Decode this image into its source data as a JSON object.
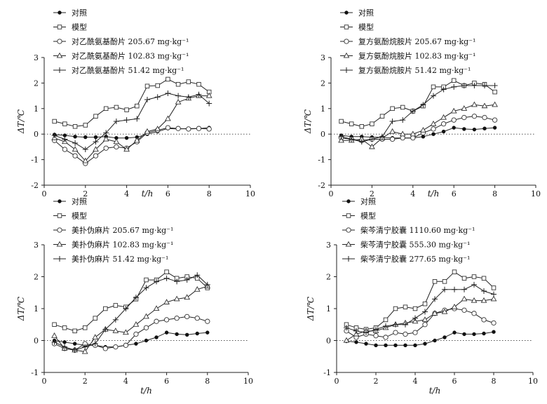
{
  "chart_data": [
    {
      "type": "line",
      "xlabel": "t/h",
      "ylabel": "ΔT/℃",
      "xlim": [
        0,
        10
      ],
      "ylim": [
        -2,
        3
      ],
      "xticks": [
        "0",
        "2",
        "4",
        "6",
        "8",
        "10"
      ],
      "yticks": [
        "-2",
        "-1",
        "0",
        "1",
        "2",
        "3"
      ],
      "grid": false,
      "legend_position": "top-left",
      "baseline_dotted": true,
      "x": [
        0.5,
        1,
        1.5,
        2,
        2.5,
        3,
        3.5,
        4,
        4.5,
        5,
        5.5,
        6,
        6.5,
        7,
        7.5,
        8
      ],
      "series": [
        {
          "name": "对照",
          "marker": "dot",
          "values": [
            -0.02,
            -0.05,
            -0.1,
            -0.12,
            -0.12,
            -0.1,
            -0.15,
            -0.15,
            -0.12,
            0.0,
            0.1,
            0.22,
            0.2,
            0.22,
            0.22,
            0.25
          ]
        },
        {
          "name": "模型",
          "marker": "square",
          "values": [
            0.5,
            0.4,
            0.3,
            0.35,
            0.7,
            1.0,
            1.05,
            0.95,
            1.1,
            1.88,
            1.9,
            2.15,
            1.95,
            2.05,
            1.95,
            1.65
          ]
        },
        {
          "name": "对乙酰氨基酚片 205.67 mg·kg⁻¹",
          "marker": "circle",
          "values": [
            -0.25,
            -0.6,
            -0.85,
            -1.15,
            -0.85,
            -0.55,
            -0.5,
            -0.55,
            -0.3,
            0.05,
            0.15,
            0.25,
            0.22,
            0.2,
            0.22,
            0.2
          ]
        },
        {
          "name": "对乙酰氨基酚片 102.83 mg·kg⁻¹",
          "marker": "triangle",
          "values": [
            -0.15,
            -0.3,
            -0.6,
            -1.05,
            -0.6,
            -0.2,
            -0.3,
            -0.6,
            -0.25,
            0.1,
            0.2,
            0.6,
            1.25,
            1.4,
            1.5,
            1.5
          ]
        },
        {
          "name": "对乙酰氨基酚片  51.42 mg·kg⁻¹",
          "marker": "plus",
          "values": [
            -0.05,
            -0.2,
            -0.35,
            -0.6,
            -0.3,
            0.05,
            0.5,
            0.55,
            0.6,
            1.35,
            1.45,
            1.6,
            1.5,
            1.45,
            1.55,
            1.2
          ]
        }
      ]
    },
    {
      "type": "line",
      "xlabel": "t/h",
      "ylabel": "ΔT/℃",
      "xlim": [
        0,
        10
      ],
      "ylim": [
        -2,
        3
      ],
      "xticks": [
        "0",
        "2",
        "4",
        "6",
        "8",
        "10"
      ],
      "yticks": [
        "-2",
        "-1",
        "0",
        "1",
        "2",
        "3"
      ],
      "grid": false,
      "legend_position": "top-left",
      "baseline_dotted": true,
      "x": [
        0.5,
        1,
        1.5,
        2,
        2.5,
        3,
        3.5,
        4,
        4.5,
        5,
        5.5,
        6,
        6.5,
        7,
        7.5,
        8
      ],
      "series": [
        {
          "name": "对照",
          "marker": "dot",
          "values": [
            -0.05,
            -0.1,
            -0.1,
            -0.12,
            -0.12,
            -0.15,
            -0.15,
            -0.15,
            -0.1,
            0.0,
            0.1,
            0.25,
            0.2,
            0.18,
            0.22,
            0.25
          ]
        },
        {
          "name": "模型",
          "marker": "square",
          "values": [
            0.5,
            0.4,
            0.3,
            0.4,
            0.7,
            1.0,
            1.05,
            0.9,
            1.1,
            1.85,
            1.85,
            2.1,
            1.9,
            2.0,
            1.95,
            1.65
          ]
        },
        {
          "name": "复方氨酚烷胺片 205.67 mg·kg⁻¹",
          "marker": "circle",
          "values": [
            -0.15,
            -0.2,
            -0.25,
            -0.2,
            -0.2,
            -0.2,
            -0.15,
            -0.15,
            0.05,
            0.2,
            0.4,
            0.55,
            0.65,
            0.7,
            0.65,
            0.55
          ]
        },
        {
          "name": "复方氨酚烷胺片 102.83 mg·kg⁻¹",
          "marker": "triangle",
          "values": [
            -0.25,
            -0.25,
            -0.2,
            -0.5,
            -0.15,
            0.1,
            0.0,
            0.0,
            0.15,
            0.4,
            0.65,
            0.9,
            1.0,
            1.15,
            1.1,
            1.15
          ]
        },
        {
          "name": "复方氨酚烷胺片  51.42 mg·kg⁻¹",
          "marker": "plus",
          "values": [
            -0.1,
            -0.2,
            -0.3,
            -0.2,
            -0.1,
            0.5,
            0.55,
            0.9,
            1.15,
            1.5,
            1.75,
            1.85,
            1.9,
            1.9,
            1.9,
            1.9
          ]
        }
      ]
    },
    {
      "type": "line",
      "xlabel": "t/h",
      "ylabel": "ΔT/℃",
      "xlim": [
        0,
        10
      ],
      "ylim": [
        -1,
        3
      ],
      "xticks": [
        "0",
        "2",
        "4",
        "6",
        "8",
        "10"
      ],
      "yticks": [
        "-1",
        "0",
        "1",
        "2",
        "3"
      ],
      "grid": false,
      "legend_position": "top-left",
      "baseline_dotted": true,
      "x": [
        0.5,
        1,
        1.5,
        2,
        2.5,
        3,
        3.5,
        4,
        4.5,
        5,
        5.5,
        6,
        6.5,
        7,
        7.5,
        8
      ],
      "series": [
        {
          "name": "对照",
          "marker": "dot",
          "values": [
            0.0,
            -0.05,
            -0.1,
            -0.15,
            -0.15,
            -0.2,
            -0.2,
            -0.15,
            -0.1,
            0.0,
            0.1,
            0.25,
            0.2,
            0.18,
            0.22,
            0.25
          ]
        },
        {
          "name": "模型",
          "marker": "square",
          "values": [
            0.5,
            0.4,
            0.3,
            0.4,
            0.7,
            1.0,
            1.1,
            1.05,
            1.3,
            1.9,
            1.9,
            2.15,
            1.95,
            2.0,
            1.95,
            1.65
          ]
        },
        {
          "name": "美扑伪麻片 205.67 mg·kg⁻¹",
          "marker": "circle",
          "values": [
            -0.1,
            -0.25,
            -0.3,
            -0.1,
            -0.15,
            -0.25,
            -0.2,
            -0.15,
            0.2,
            0.4,
            0.6,
            0.65,
            0.7,
            0.75,
            0.7,
            0.6
          ]
        },
        {
          "name": "美扑伪麻片 102.83 mg·kg⁻¹",
          "marker": "triangle",
          "values": [
            0.15,
            -0.25,
            -0.3,
            -0.35,
            0.1,
            0.35,
            0.3,
            0.25,
            0.5,
            0.75,
            1.0,
            1.2,
            1.3,
            1.35,
            1.6,
            1.7
          ]
        },
        {
          "name": "美扑伪麻片  51.42 mg·kg⁻¹",
          "marker": "plus",
          "values": [
            -0.05,
            -0.2,
            -0.3,
            -0.2,
            -0.1,
            0.35,
            0.65,
            1.0,
            1.35,
            1.65,
            1.85,
            1.95,
            1.85,
            1.9,
            2.05,
            1.75
          ]
        }
      ]
    },
    {
      "type": "line",
      "xlabel": "t/h",
      "ylabel": "ΔT/℃",
      "xlim": [
        0,
        10
      ],
      "ylim": [
        -1,
        3
      ],
      "xticks": [
        "0",
        "2",
        "4",
        "6",
        "8",
        "10"
      ],
      "yticks": [
        "-1",
        "0",
        "1",
        "2",
        "3"
      ],
      "grid": false,
      "legend_position": "top-left",
      "baseline_dotted": true,
      "x": [
        0.5,
        1,
        1.5,
        2,
        2.5,
        3,
        3.5,
        4,
        4.5,
        5,
        5.5,
        6,
        6.5,
        7,
        7.5,
        8
      ],
      "series": [
        {
          "name": "对照",
          "marker": "dot",
          "values": [
            -0.02,
            -0.05,
            -0.1,
            -0.15,
            -0.15,
            -0.15,
            -0.15,
            -0.15,
            -0.1,
            0.0,
            0.1,
            0.25,
            0.2,
            0.2,
            0.22,
            0.27
          ]
        },
        {
          "name": "模型",
          "marker": "square",
          "values": [
            0.5,
            0.4,
            0.35,
            0.4,
            0.65,
            1.0,
            1.05,
            1.0,
            1.15,
            1.85,
            1.85,
            2.15,
            1.95,
            2.0,
            1.95,
            1.65
          ]
        },
        {
          "name": "柴芩清宁胶囊 1110.60 mg·kg⁻¹",
          "marker": "circle",
          "values": [
            0.3,
            0.1,
            0.2,
            0.15,
            0.1,
            0.25,
            0.2,
            0.25,
            0.5,
            0.85,
            0.95,
            1.0,
            0.95,
            0.85,
            0.65,
            0.55
          ]
        },
        {
          "name": "柴芩清宁胶囊  555.30 mg·kg⁻¹",
          "marker": "triangle",
          "values": [
            0.0,
            0.2,
            0.3,
            0.3,
            0.4,
            0.5,
            0.55,
            0.6,
            0.65,
            0.85,
            0.9,
            1.05,
            1.3,
            1.25,
            1.25,
            1.3
          ]
        },
        {
          "name": "柴芩清宁胶囊  277.65 mg·kg⁻¹",
          "marker": "plus",
          "values": [
            0.4,
            0.3,
            0.25,
            0.35,
            0.45,
            0.5,
            0.5,
            0.7,
            0.9,
            1.3,
            1.6,
            1.6,
            1.6,
            1.75,
            1.55,
            1.45
          ]
        }
      ]
    }
  ]
}
